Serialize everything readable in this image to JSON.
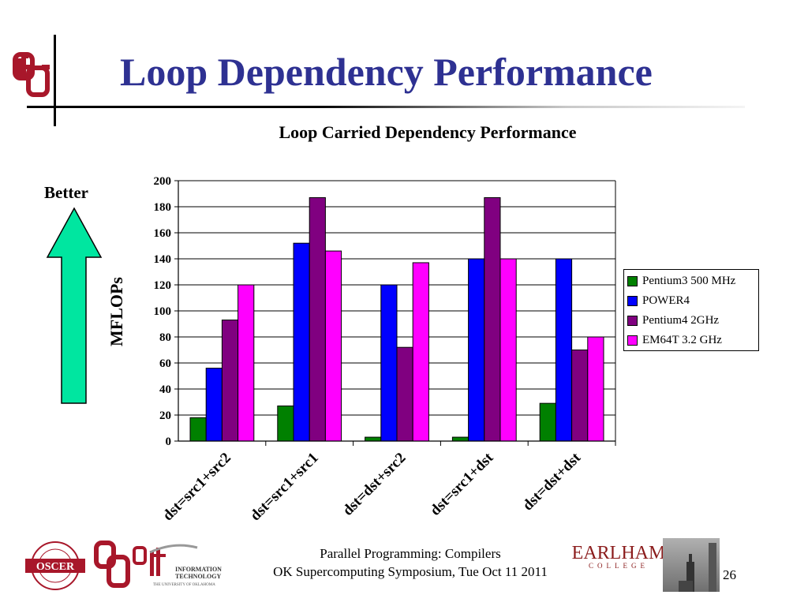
{
  "slide": {
    "title": "Loop Dependency Performance",
    "better_label": "Better",
    "footer_line1": "Parallel Programming: Compilers",
    "footer_line2": "OK Supercomputing Symposium, Tue Oct 11 2011",
    "page_number": "26",
    "earlham_name": "EARLHAM",
    "earlham_sub": "COLLEGE",
    "it_logo_line1": "INFORMATION",
    "it_logo_line2": "TECHNOLOGY",
    "it_logo_sub": "THE UNIVERSITY OF OKLAHOMA",
    "oscer_text": "OSCER",
    "arrow_color": "#00e6a0"
  },
  "chart_data": {
    "type": "bar",
    "title": "Loop Carried Dependency Performance",
    "ylabel": "MFLOPs",
    "xlabel": "",
    "ylim": [
      0,
      200
    ],
    "yticks": [
      "0",
      "20",
      "40",
      "60",
      "80",
      "100",
      "120",
      "140",
      "160",
      "180",
      "200"
    ],
    "categories": [
      "dst=src1+src2",
      "dst=src1+src1",
      "dst=dst+src2",
      "dst=src1+dst",
      "dst=dst+dst"
    ],
    "series": [
      {
        "name": "Pentium3 500 MHz",
        "color": "#008000",
        "values": [
          18,
          27,
          3,
          3,
          29
        ]
      },
      {
        "name": "POWER4",
        "color": "#0000ff",
        "values": [
          56,
          152,
          120,
          140,
          140
        ]
      },
      {
        "name": "Pentium4 2GHz",
        "color": "#800080",
        "values": [
          93,
          187,
          72,
          187,
          70
        ]
      },
      {
        "name": "EM64T 3.2 GHz",
        "color": "#ff00ff",
        "values": [
          120,
          146,
          137,
          140,
          80
        ]
      }
    ],
    "grid": true,
    "legend_position": "right"
  }
}
